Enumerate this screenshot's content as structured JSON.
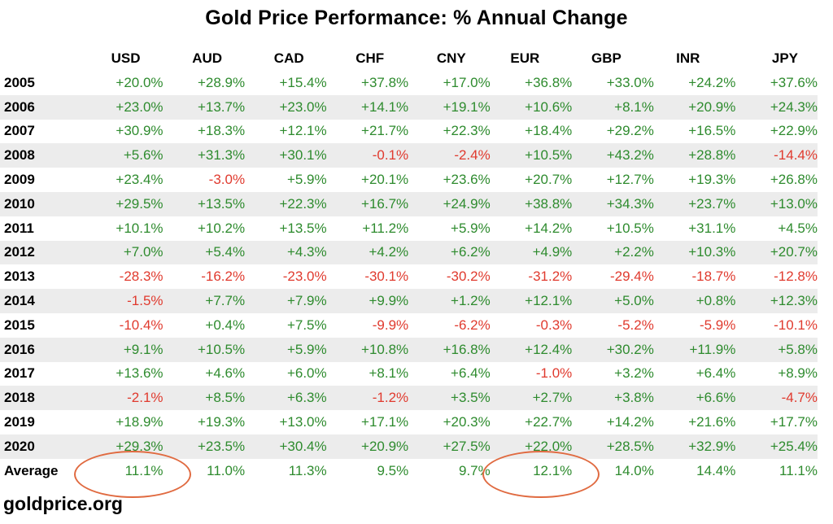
{
  "title": "Gold Price Performance: % Annual Change",
  "brand": "goldprice.org",
  "colors": {
    "positive": "#2e8b2e",
    "negative": "#e03a2e",
    "highlight": "#e06a40",
    "stripe": "#ececec"
  },
  "chart_data": {
    "type": "table",
    "title": "Gold Price Performance: % Annual Change",
    "columns": [
      "USD",
      "AUD",
      "CAD",
      "CHF",
      "CNY",
      "EUR",
      "GBP",
      "INR",
      "JPY"
    ],
    "rows": [
      {
        "label": "2005",
        "values": [
          "+20.0%",
          "+28.9%",
          "+15.4%",
          "+37.8%",
          "+17.0%",
          "+36.8%",
          "+33.0%",
          "+24.2%",
          "+37.6%"
        ]
      },
      {
        "label": "2006",
        "values": [
          "+23.0%",
          "+13.7%",
          "+23.0%",
          "+14.1%",
          "+19.1%",
          "+10.6%",
          "+8.1%",
          "+20.9%",
          "+24.3%"
        ]
      },
      {
        "label": "2007",
        "values": [
          "+30.9%",
          "+18.3%",
          "+12.1%",
          "+21.7%",
          "+22.3%",
          "+18.4%",
          "+29.2%",
          "+16.5%",
          "+22.9%"
        ]
      },
      {
        "label": "2008",
        "values": [
          "+5.6%",
          "+31.3%",
          "+30.1%",
          "-0.1%",
          "-2.4%",
          "+10.5%",
          "+43.2%",
          "+28.8%",
          "-14.4%"
        ]
      },
      {
        "label": "2009",
        "values": [
          "+23.4%",
          "-3.0%",
          "+5.9%",
          "+20.1%",
          "+23.6%",
          "+20.7%",
          "+12.7%",
          "+19.3%",
          "+26.8%"
        ]
      },
      {
        "label": "2010",
        "values": [
          "+29.5%",
          "+13.5%",
          "+22.3%",
          "+16.7%",
          "+24.9%",
          "+38.8%",
          "+34.3%",
          "+23.7%",
          "+13.0%"
        ]
      },
      {
        "label": "2011",
        "values": [
          "+10.1%",
          "+10.2%",
          "+13.5%",
          "+11.2%",
          "+5.9%",
          "+14.2%",
          "+10.5%",
          "+31.1%",
          "+4.5%"
        ]
      },
      {
        "label": "2012",
        "values": [
          "+7.0%",
          "+5.4%",
          "+4.3%",
          "+4.2%",
          "+6.2%",
          "+4.9%",
          "+2.2%",
          "+10.3%",
          "+20.7%"
        ]
      },
      {
        "label": "2013",
        "values": [
          "-28.3%",
          "-16.2%",
          "-23.0%",
          "-30.1%",
          "-30.2%",
          "-31.2%",
          "-29.4%",
          "-18.7%",
          "-12.8%"
        ]
      },
      {
        "label": "2014",
        "values": [
          "-1.5%",
          "+7.7%",
          "+7.9%",
          "+9.9%",
          "+1.2%",
          "+12.1%",
          "+5.0%",
          "+0.8%",
          "+12.3%"
        ]
      },
      {
        "label": "2015",
        "values": [
          "-10.4%",
          "+0.4%",
          "+7.5%",
          "-9.9%",
          "-6.2%",
          "-0.3%",
          "-5.2%",
          "-5.9%",
          "-10.1%"
        ]
      },
      {
        "label": "2016",
        "values": [
          "+9.1%",
          "+10.5%",
          "+5.9%",
          "+10.8%",
          "+16.8%",
          "+12.4%",
          "+30.2%",
          "+11.9%",
          "+5.8%"
        ]
      },
      {
        "label": "2017",
        "values": [
          "+13.6%",
          "+4.6%",
          "+6.0%",
          "+8.1%",
          "+6.4%",
          "-1.0%",
          "+3.2%",
          "+6.4%",
          "+8.9%"
        ]
      },
      {
        "label": "2018",
        "values": [
          "-2.1%",
          "+8.5%",
          "+6.3%",
          "-1.2%",
          "+3.5%",
          "+2.7%",
          "+3.8%",
          "+6.6%",
          "-4.7%"
        ]
      },
      {
        "label": "2019",
        "values": [
          "+18.9%",
          "+19.3%",
          "+13.0%",
          "+17.1%",
          "+20.3%",
          "+22.7%",
          "+14.2%",
          "+21.6%",
          "+17.7%"
        ]
      },
      {
        "label": "2020",
        "values": [
          "+29.3%",
          "+23.5%",
          "+30.4%",
          "+20.9%",
          "+27.5%",
          "+22.0%",
          "+28.5%",
          "+32.9%",
          "+25.4%"
        ]
      }
    ],
    "average": {
      "label": "Average",
      "values": [
        "11.1%",
        "11.0%",
        "11.3%",
        "9.5%",
        "9.7%",
        "12.1%",
        "14.0%",
        "14.4%",
        "11.1%"
      ]
    },
    "highlighted": [
      "USD",
      "EUR"
    ]
  }
}
